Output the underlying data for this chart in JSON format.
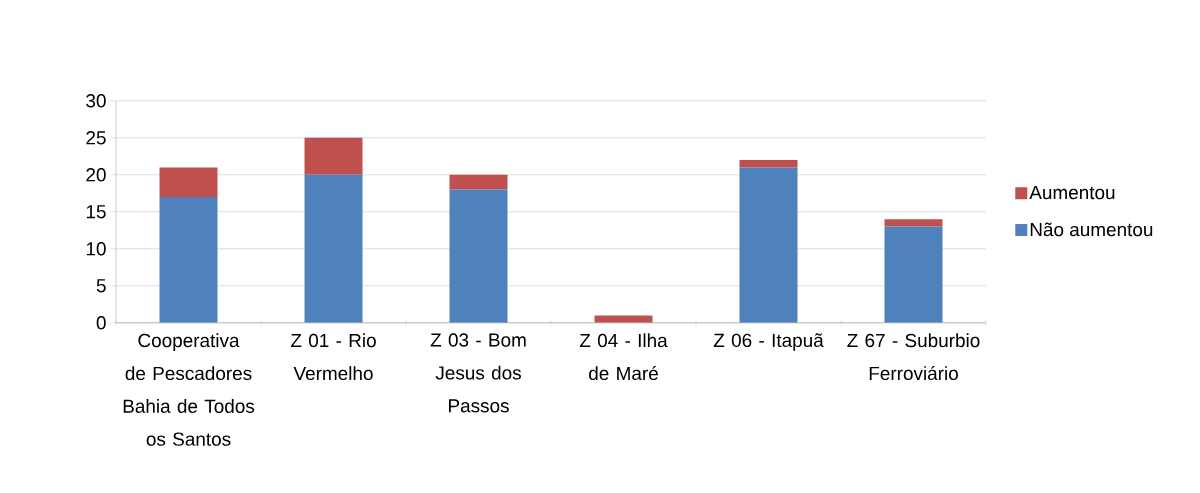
{
  "chart_data": {
    "type": "bar",
    "stacked": true,
    "categories": [
      "Cooperativa de Pescadores Bahia de Todos os Santos",
      "Z 01 - Rio Vermelho",
      "Z 03 - Bom Jesus dos Passos",
      "Z 04 - Ilha de Maré",
      "Z 06 - Itapuã",
      "Z 67 - Suburbio Ferroviário"
    ],
    "series": [
      {
        "name": "Não aumentou",
        "color": "#4f81bd",
        "values": [
          17,
          20,
          18,
          0,
          21,
          13
        ]
      },
      {
        "name": "Aumentou",
        "color": "#c0504d",
        "values": [
          4,
          5,
          2,
          1,
          1,
          1
        ]
      }
    ],
    "ylim": [
      0,
      30
    ],
    "yticks": [
      0,
      5,
      10,
      15,
      20,
      25,
      30
    ],
    "grid": "y",
    "legend": "right"
  }
}
